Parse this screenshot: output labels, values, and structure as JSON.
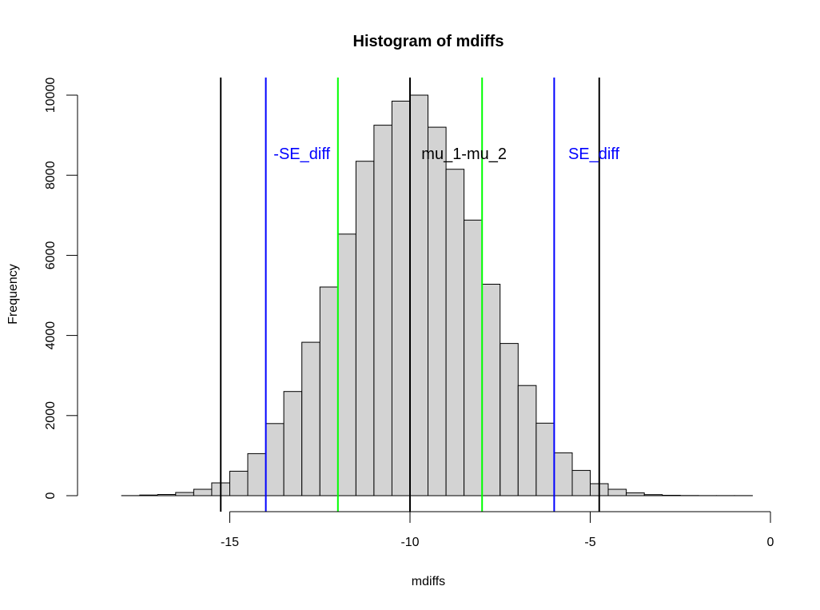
{
  "chart_data": {
    "type": "bar",
    "title": "Histogram of mdiffs",
    "xlabel": "mdiffs",
    "ylabel": "Frequency",
    "xlim": [
      -18.5,
      0
    ],
    "ylim": [
      0,
      10000
    ],
    "xticks": [
      -15,
      -10,
      -5,
      0
    ],
    "yticks": [
      0,
      2000,
      4000,
      6000,
      8000,
      10000
    ],
    "bin_width": 0.5,
    "bins": [
      {
        "x0": -18.0,
        "x1": -17.5,
        "count": 2
      },
      {
        "x0": -17.5,
        "x1": -17.0,
        "count": 15
      },
      {
        "x0": -17.0,
        "x1": -16.5,
        "count": 30
      },
      {
        "x0": -16.5,
        "x1": -16.0,
        "count": 80
      },
      {
        "x0": -16.0,
        "x1": -15.5,
        "count": 160
      },
      {
        "x0": -15.5,
        "x1": -15.0,
        "count": 320
      },
      {
        "x0": -15.0,
        "x1": -14.5,
        "count": 610
      },
      {
        "x0": -14.5,
        "x1": -14.0,
        "count": 1050
      },
      {
        "x0": -14.0,
        "x1": -13.5,
        "count": 1800
      },
      {
        "x0": -13.5,
        "x1": -13.0,
        "count": 2600
      },
      {
        "x0": -13.0,
        "x1": -12.5,
        "count": 3830
      },
      {
        "x0": -12.5,
        "x1": -12.0,
        "count": 5210
      },
      {
        "x0": -12.0,
        "x1": -11.5,
        "count": 6530
      },
      {
        "x0": -11.5,
        "x1": -11.0,
        "count": 8350
      },
      {
        "x0": -11.0,
        "x1": -10.5,
        "count": 9250
      },
      {
        "x0": -10.5,
        "x1": -10.0,
        "count": 9850
      },
      {
        "x0": -10.0,
        "x1": -9.5,
        "count": 10000
      },
      {
        "x0": -9.5,
        "x1": -9.0,
        "count": 9200
      },
      {
        "x0": -9.0,
        "x1": -8.5,
        "count": 8150
      },
      {
        "x0": -8.5,
        "x1": -8.0,
        "count": 6880
      },
      {
        "x0": -8.0,
        "x1": -7.5,
        "count": 5280
      },
      {
        "x0": -7.5,
        "x1": -7.0,
        "count": 3800
      },
      {
        "x0": -7.0,
        "x1": -6.5,
        "count": 2750
      },
      {
        "x0": -6.5,
        "x1": -6.0,
        "count": 1810
      },
      {
        "x0": -6.0,
        "x1": -5.5,
        "count": 1070
      },
      {
        "x0": -5.5,
        "x1": -5.0,
        "count": 630
      },
      {
        "x0": -5.0,
        "x1": -4.5,
        "count": 300
      },
      {
        "x0": -4.5,
        "x1": -4.0,
        "count": 160
      },
      {
        "x0": -4.0,
        "x1": -3.5,
        "count": 70
      },
      {
        "x0": -3.5,
        "x1": -3.0,
        "count": 25
      },
      {
        "x0": -3.0,
        "x1": -2.5,
        "count": 10
      },
      {
        "x0": -2.5,
        "x1": -2.0,
        "count": 4
      },
      {
        "x0": -2.0,
        "x1": -1.5,
        "count": 2
      },
      {
        "x0": -1.5,
        "x1": -1.0,
        "count": 1
      },
      {
        "x0": -1.0,
        "x1": -0.5,
        "count": 1
      }
    ],
    "bar_fill": "#d3d3d3",
    "bar_stroke": "#000000",
    "vlines": [
      {
        "x": -15.25,
        "color": "#000000"
      },
      {
        "x": -14.0,
        "color": "#0000ff"
      },
      {
        "x": -12.0,
        "color": "#00ff00"
      },
      {
        "x": -10.0,
        "color": "#000000"
      },
      {
        "x": -8.0,
        "color": "#00ff00"
      },
      {
        "x": -6.0,
        "color": "#0000ff"
      },
      {
        "x": -4.75,
        "color": "#000000"
      }
    ],
    "annotations": [
      {
        "text": "-SE_diff",
        "x": -13.0,
        "y": 8400,
        "color": "#0000ff"
      },
      {
        "text": "mu_1-mu_2",
        "x": -8.5,
        "y": 8400,
        "color": "#000000"
      },
      {
        "text": "SE_diff",
        "x": -4.9,
        "y": 8400,
        "color": "#0000ff"
      }
    ]
  }
}
